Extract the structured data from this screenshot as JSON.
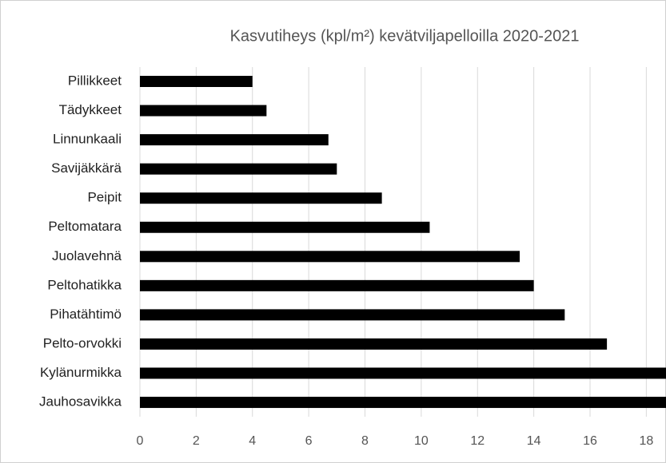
{
  "chart_data": {
    "type": "bar",
    "orientation": "horizontal",
    "title": "Kasvutiheys (kpl/m²) kevätviljapelloilla 2020-2021",
    "categories": [
      "Pillikkeet",
      "Tädykkeet",
      "Linnunkaali",
      "Savijäkkärä",
      "Peipit",
      "Peltomatara",
      "Juolavehnä",
      "Peltohatikka",
      "Pihatähtimö",
      "Pelto-orvokki",
      "Kylänurmikka",
      "Jauhosavikka"
    ],
    "values": [
      4.0,
      4.5,
      6.7,
      7.0,
      8.6,
      10.3,
      13.5,
      14.0,
      15.1,
      16.6,
      19,
      19
    ],
    "color": "#000000",
    "xlim": [
      0,
      18.7
    ],
    "xticks": [
      0,
      2,
      4,
      6,
      8,
      10,
      12,
      14,
      16,
      18
    ],
    "grid": true
  }
}
